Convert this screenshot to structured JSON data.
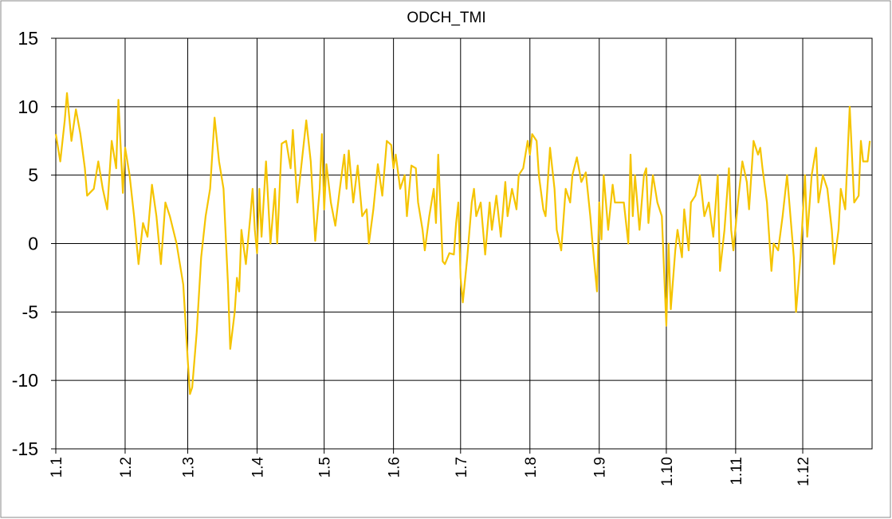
{
  "chart_data": {
    "type": "line",
    "title": "ODCH_TMI",
    "x": [
      1,
      3,
      5,
      6,
      8,
      10,
      12,
      14,
      15,
      18,
      20,
      22,
      24,
      26,
      28,
      29,
      31,
      32,
      34,
      36,
      38,
      40,
      42,
      44,
      46,
      48,
      50,
      52,
      55,
      58,
      60,
      61,
      62,
      64,
      66,
      68,
      70,
      72,
      74,
      76,
      78,
      79,
      81,
      82,
      83,
      84,
      86,
      88,
      89,
      90,
      91,
      92,
      93,
      95,
      97,
      99,
      100,
      102,
      104,
      106,
      107,
      109,
      111,
      113,
      115,
      117,
      119,
      120,
      121,
      122,
      124,
      126,
      128,
      130,
      131,
      132,
      134,
      136,
      138,
      140,
      141,
      143,
      145,
      147,
      149,
      151,
      152,
      153,
      155,
      157,
      158,
      160,
      162,
      163,
      165,
      166,
      168,
      170,
      171,
      172,
      174,
      175,
      177,
      179,
      180,
      181,
      182,
      183,
      185,
      187,
      188,
      189,
      191,
      193,
      195,
      196,
      198,
      200,
      202,
      203,
      205,
      207,
      208,
      210,
      212,
      213,
      214,
      216,
      217,
      219,
      220,
      222,
      224,
      225,
      227,
      229,
      231,
      232,
      234,
      236,
      238,
      240,
      241,
      243,
      244,
      245,
      246,
      248,
      250,
      251,
      253,
      255,
      257,
      258,
      259,
      260,
      262,
      264,
      265,
      266,
      268,
      270,
      272,
      273,
      274,
      275,
      276,
      278,
      279,
      281,
      282,
      284,
      285,
      287,
      289,
      291,
      293,
      295,
      297,
      298,
      300,
      302,
      303,
      304,
      306,
      308,
      310,
      311,
      313,
      315,
      316,
      317,
      319,
      321,
      322,
      324,
      326,
      328,
      329,
      331,
      332,
      333,
      334,
      336,
      337,
      339,
      341,
      342,
      344,
      346,
      348,
      349,
      351,
      352,
      354,
      356,
      358,
      360,
      361,
      362,
      364,
      365
    ],
    "series": [
      {
        "color": "#f5c400",
        "values": [
          8,
          6,
          9,
          11,
          7.5,
          9.8,
          8,
          5.5,
          3.5,
          4,
          6,
          4,
          2.5,
          7.5,
          5.5,
          10.5,
          3.7,
          7,
          5,
          2,
          -1.5,
          1.5,
          0.5,
          4.3,
          2,
          -1.5,
          3,
          2,
          0,
          -3,
          -8.5,
          -11,
          -10.5,
          -6.5,
          -1,
          2,
          4,
          9.2,
          6,
          4,
          -3,
          -7.7,
          -5,
          -2.5,
          -3.5,
          1,
          -1.5,
          2,
          4,
          1,
          -0.7,
          4,
          0.5,
          6,
          0,
          4,
          0,
          7.3,
          7.5,
          5.5,
          8.3,
          3,
          6,
          9,
          6,
          0.2,
          4,
          8,
          2.5,
          5.8,
          3,
          1.3,
          4,
          6.5,
          4,
          6.8,
          3,
          5.7,
          2,
          2.5,
          0,
          2.5,
          5.8,
          3.5,
          7.5,
          7.2,
          5.5,
          6.5,
          4,
          5,
          2,
          5.7,
          5.5,
          3,
          1,
          -0.5,
          2,
          4,
          1.5,
          6.5,
          -1.3,
          -1.5,
          -0.7,
          -0.8,
          1.5,
          3,
          -2.5,
          -4.3,
          -1,
          3,
          4,
          2,
          3,
          -0.8,
          3,
          1,
          3.5,
          0.5,
          4.5,
          2,
          4,
          2.5,
          5,
          5.5,
          7.5,
          6.5,
          8,
          7.5,
          5,
          2.5,
          2,
          7,
          4,
          1,
          -0.5,
          4,
          3,
          5,
          6.3,
          4.5,
          5.2,
          2,
          0,
          -3.5,
          3,
          0.3,
          5,
          1,
          4.3,
          3,
          3,
          3,
          0,
          6.5,
          2,
          5,
          1,
          5,
          5.5,
          1.5,
          5,
          3,
          2,
          -2,
          -6,
          0,
          -4.8,
          -0.5,
          1,
          -1,
          2.5,
          -0.5,
          3,
          3.5,
          5,
          2,
          3,
          0.5,
          5,
          -2,
          1,
          5.5,
          1,
          -0.5,
          3,
          6,
          4.5,
          2.5,
          7.5,
          6.5,
          7,
          5.5,
          3,
          -2,
          0,
          -0.5,
          2,
          5,
          3,
          -1,
          -5,
          -3,
          -1,
          5,
          0.5,
          5,
          7,
          3,
          5,
          4,
          1,
          -1.5,
          1,
          4,
          2.5,
          10,
          3,
          3.5,
          7.5,
          6,
          6,
          7.5
        ]
      }
    ],
    "xlim": [
      1,
      366
    ],
    "xticks": [
      {
        "value": 1,
        "label": "1.1"
      },
      {
        "value": 32,
        "label": "1.2"
      },
      {
        "value": 60,
        "label": "1.3"
      },
      {
        "value": 91,
        "label": "1.4"
      },
      {
        "value": 121,
        "label": "1.5"
      },
      {
        "value": 152,
        "label": "1.6"
      },
      {
        "value": 182,
        "label": "1.7"
      },
      {
        "value": 213,
        "label": "1.8"
      },
      {
        "value": 244,
        "label": "1.9"
      },
      {
        "value": 274,
        "label": "1.10"
      },
      {
        "value": 305,
        "label": "1.11"
      },
      {
        "value": 335,
        "label": "1.12"
      }
    ],
    "ylim": [
      -15,
      15
    ],
    "yticks": [
      -15,
      -10,
      -5,
      0,
      5,
      10,
      15
    ],
    "grid": true
  }
}
